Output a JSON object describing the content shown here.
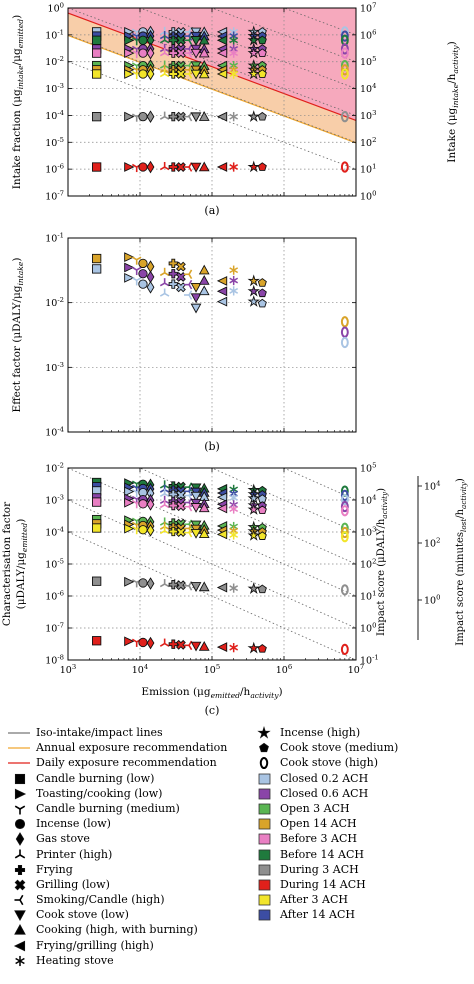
{
  "panels": [
    {
      "id": "a",
      "caption": "(a)",
      "ylabel_left": "Intake fraction (μg_intake/μg_emitted)",
      "ylabel_right": "Intake (μg_intake/h_activity)",
      "yticks_left": [
        "10^0",
        "10^-1",
        "10^-2",
        "10^-3",
        "10^-4",
        "10^-5",
        "10^-6",
        "10^-7"
      ],
      "yticks_right": [
        "10^7",
        "10^6",
        "10^5",
        "10^4",
        "10^3",
        "10^2",
        "10^1",
        "10^0"
      ],
      "ylim": [
        1e-07,
        1
      ],
      "xlim": [
        1000,
        10000000
      ],
      "exposure_lines": {
        "daily": {
          "y_at_1e3": 0.65,
          "y_at_1e7": 6.5e-05
        },
        "annual": {
          "y_at_1e3": 0.095,
          "y_at_1e7": 9.5e-06
        }
      }
    },
    {
      "id": "b",
      "caption": "(b)",
      "ylabel_left": "Effect factor (μDALY/μg_intake)",
      "yticks_left": [
        "10^-1",
        "10^-2",
        "10^-3",
        "10^-4"
      ],
      "ylim": [
        0.0001,
        0.1
      ],
      "xlim": [
        1000,
        10000000
      ]
    },
    {
      "id": "c",
      "caption": "(c)",
      "ylabel_left": "Characterisation factor (μDALY/μg_emitted)",
      "ylabel_right": "Impact score (μDALY/h_activity)",
      "ylabel_right2": "Impact score (minutes_lost/h_activity)",
      "yticks_left": [
        "10^-2",
        "10^-3",
        "10^-4",
        "10^-5",
        "10^-6",
        "10^-7",
        "10^-8"
      ],
      "yticks_right": [
        "10^5",
        "10^4",
        "10^3",
        "10^2",
        "10^1",
        "10^0",
        "10^-1"
      ],
      "yticks_right2": [
        "10^4",
        "10^2",
        "10^0"
      ],
      "ylim": [
        1e-08,
        0.01
      ],
      "xlim": [
        1000,
        10000000
      ],
      "xlabel": "Emission (μg_emitted/h_activity)",
      "xticks": [
        "10^3",
        "10^4",
        "10^5",
        "10^6",
        "10^7"
      ]
    }
  ],
  "chart_data": {
    "type": "scatter",
    "x_scale": "log",
    "y_scale": "log",
    "sources": [
      {
        "name": "Candle burning (low)",
        "marker": "square",
        "x": 2500
      },
      {
        "name": "Toasting/cooking (low)",
        "marker": "triangle-right",
        "x": 7000
      },
      {
        "name": "Candle burning (medium)",
        "marker": "tri-down",
        "x": 9000
      },
      {
        "name": "Incense (low)",
        "marker": "circle",
        "x": 11000
      },
      {
        "name": "Gas stove",
        "marker": "diamond",
        "x": 14000
      },
      {
        "name": "Printer (high)",
        "marker": "tri-up",
        "x": 22000
      },
      {
        "name": "Frying",
        "marker": "plus",
        "x": 29000
      },
      {
        "name": "Grilling (low)",
        "marker": "x",
        "x": 37000
      },
      {
        "name": "Smoking/Candle (high)",
        "marker": "tri-left",
        "x": 48000
      },
      {
        "name": "Cook stove (low)",
        "marker": "triangle-down",
        "x": 60000
      },
      {
        "name": "Cooking (high, with burning)",
        "marker": "triangle-up",
        "x": 78000
      },
      {
        "name": "Frying/grilling (high)",
        "marker": "triangle-left",
        "x": 140000
      },
      {
        "name": "Heating stove",
        "marker": "asterisk",
        "x": 200000
      },
      {
        "name": "Incense (high)",
        "marker": "star",
        "x": 380000
      },
      {
        "name": "Cook stove (medium)",
        "marker": "pentagon",
        "x": 500000
      },
      {
        "name": "Cook stove (high)",
        "marker": "ring",
        "x": 7000000
      }
    ],
    "scenarios": [
      {
        "name": "Closed 0.2 ACH",
        "color": "#a9c4e3",
        "intake_fraction": 0.09,
        "effect_factor": 0.03,
        "characterisation_factor": 0.0027
      },
      {
        "name": "Closed 0.6 ACH",
        "color": "#8a45a8",
        "intake_fraction": 0.03,
        "effect_factor": 0.03,
        "characterisation_factor": 0.0009
      },
      {
        "name": "Open 3 ACH",
        "color": "#5ab552",
        "intake_fraction": 0.0045,
        "effect_factor": 0.04,
        "characterisation_factor": 0.00018
      },
      {
        "name": "Open 14 ACH",
        "color": "#d9a42a",
        "intake_fraction": 0.0035,
        "effect_factor": 0.04,
        "characterisation_factor": 0.00014
      },
      {
        "name": "Before 3 ACH",
        "color": "#e97fc3",
        "intake_fraction": 0.07,
        "effect_factor": 0.035,
        "characterisation_factor": 0.0024
      },
      {
        "name": "Before 14 ACH",
        "color": "#1f7a3d",
        "intake_fraction": 0.05,
        "effect_factor": 0.035,
        "characterisation_factor": 0.0017
      },
      {
        "name": "During 3 ACH",
        "color": "#8f8f8f",
        "intake_fraction": 9e-05,
        "effect_factor": 0.032,
        "characterisation_factor": 2.9e-06
      },
      {
        "name": "During 14 ACH",
        "color": "#e0201b",
        "intake_fraction": 1.2e-06,
        "effect_factor": 0.03,
        "characterisation_factor": 4e-08
      },
      {
        "name": "After 3 ACH",
        "color": "#f2e52a",
        "intake_fraction": 0.0055,
        "effect_factor": 0.04,
        "characterisation_factor": 0.00022
      },
      {
        "name": "After 14 ACH",
        "color": "#3c4da3",
        "intake_fraction": 0.075,
        "effect_factor": 0.035,
        "characterisation_factor": 0.0026
      }
    ],
    "panel_a_rows": [
      {
        "y": 0.09,
        "colors": [
          "#a9c4e3",
          "#3c4da3",
          "#1f7a3d"
        ]
      },
      {
        "y": 0.025,
        "colors": [
          "#8a45a8",
          "#e97fc3"
        ]
      },
      {
        "y": 0.005,
        "colors": [
          "#5ab552",
          "#d9a42a",
          "#f2e52a"
        ]
      },
      {
        "y": 9e-05,
        "colors": [
          "#8f8f8f"
        ]
      },
      {
        "y": 1.2e-06,
        "colors": [
          "#e0201b"
        ]
      }
    ],
    "panel_b_points": [
      {
        "x": 2500,
        "y": 0.04,
        "colors": [
          "#d9a42a",
          "#a9c4e3"
        ]
      },
      {
        "x": 7000,
        "y": 0.035,
        "colors": [
          "#d9a42a",
          "#8a45a8",
          "#a9c4e3"
        ]
      },
      {
        "x": 9000,
        "y": 0.032
      },
      {
        "x": 11000,
        "y": 0.028
      },
      {
        "x": 14000,
        "y": 0.025
      },
      {
        "x": 22000,
        "y": 0.02
      },
      {
        "x": 29000,
        "y": 0.028
      },
      {
        "x": 37000,
        "y": 0.025
      },
      {
        "x": 48000,
        "y": 0.019
      },
      {
        "x": 60000,
        "y": 0.012
      },
      {
        "x": 78000,
        "y": 0.022
      },
      {
        "x": 140000,
        "y": 0.015
      },
      {
        "x": 200000,
        "y": 0.022
      },
      {
        "x": 380000,
        "y": 0.015
      },
      {
        "x": 500000,
        "y": 0.014
      },
      {
        "x": 7000000,
        "y": 0.0035
      }
    ],
    "panel_c_rows": [
      {
        "y": 0.0026,
        "colors": [
          "#1f7a3d",
          "#3c4da3",
          "#a9c4e3"
        ]
      },
      {
        "y": 0.001,
        "colors": [
          "#8a45a8",
          "#e97fc3"
        ]
      },
      {
        "y": 0.00018,
        "colors": [
          "#5ab552",
          "#d9a42a",
          "#f2e52a"
        ]
      },
      {
        "y": 2.9e-06,
        "colors": [
          "#8f8f8f"
        ]
      },
      {
        "y": 4e-08,
        "colors": [
          "#e0201b"
        ]
      }
    ]
  },
  "legend": {
    "lines": [
      {
        "label": "Iso-intake/impact lines",
        "color": "#777777"
      },
      {
        "label": "Annual exposure recommendation",
        "color": "#f0a830"
      },
      {
        "label": "Daily exposure recommendation",
        "color": "#e0201b"
      }
    ],
    "markers_col1": [
      {
        "label": "Candle burning (low)",
        "marker": "square"
      },
      {
        "label": "Toasting/cooking (low)",
        "marker": "triangle-right"
      },
      {
        "label": "Candle burning (medium)",
        "marker": "tri-down"
      },
      {
        "label": "Incense (low)",
        "marker": "circle"
      },
      {
        "label": "Gas stove",
        "marker": "diamond"
      },
      {
        "label": "Printer (high)",
        "marker": "tri-up"
      },
      {
        "label": "Frying",
        "marker": "plus"
      },
      {
        "label": "Grilling (low)",
        "marker": "x"
      },
      {
        "label": "Smoking/Candle (high)",
        "marker": "tri-left"
      },
      {
        "label": "Cook stove (low)",
        "marker": "triangle-down"
      },
      {
        "label": "Cooking (high, with burning)",
        "marker": "triangle-up"
      },
      {
        "label": "Frying/grilling (high)",
        "marker": "triangle-left"
      },
      {
        "label": "Heating stove",
        "marker": "asterisk"
      }
    ],
    "markers_col2": [
      {
        "label": "Incense (high)",
        "marker": "star"
      },
      {
        "label": "Cook stove (medium)",
        "marker": "pentagon"
      },
      {
        "label": "Cook stove (high)",
        "marker": "ring"
      }
    ],
    "colors_col2": [
      {
        "label": "Closed 0.2 ACH",
        "color": "#a9c4e3"
      },
      {
        "label": "Closed 0.6 ACH",
        "color": "#8a45a8"
      },
      {
        "label": "Open 3 ACH",
        "color": "#5ab552"
      },
      {
        "label": "Open 14 ACH",
        "color": "#d9a42a"
      },
      {
        "label": "Before 3 ACH",
        "color": "#e97fc3"
      },
      {
        "label": "Before 14 ACH",
        "color": "#1f7a3d"
      },
      {
        "label": "During 3 ACH",
        "color": "#8f8f8f"
      },
      {
        "label": "During 14 ACH",
        "color": "#e0201b"
      },
      {
        "label": "After 3 ACH",
        "color": "#f2e52a"
      },
      {
        "label": "After 14 ACH",
        "color": "#3c4da3"
      }
    ]
  }
}
